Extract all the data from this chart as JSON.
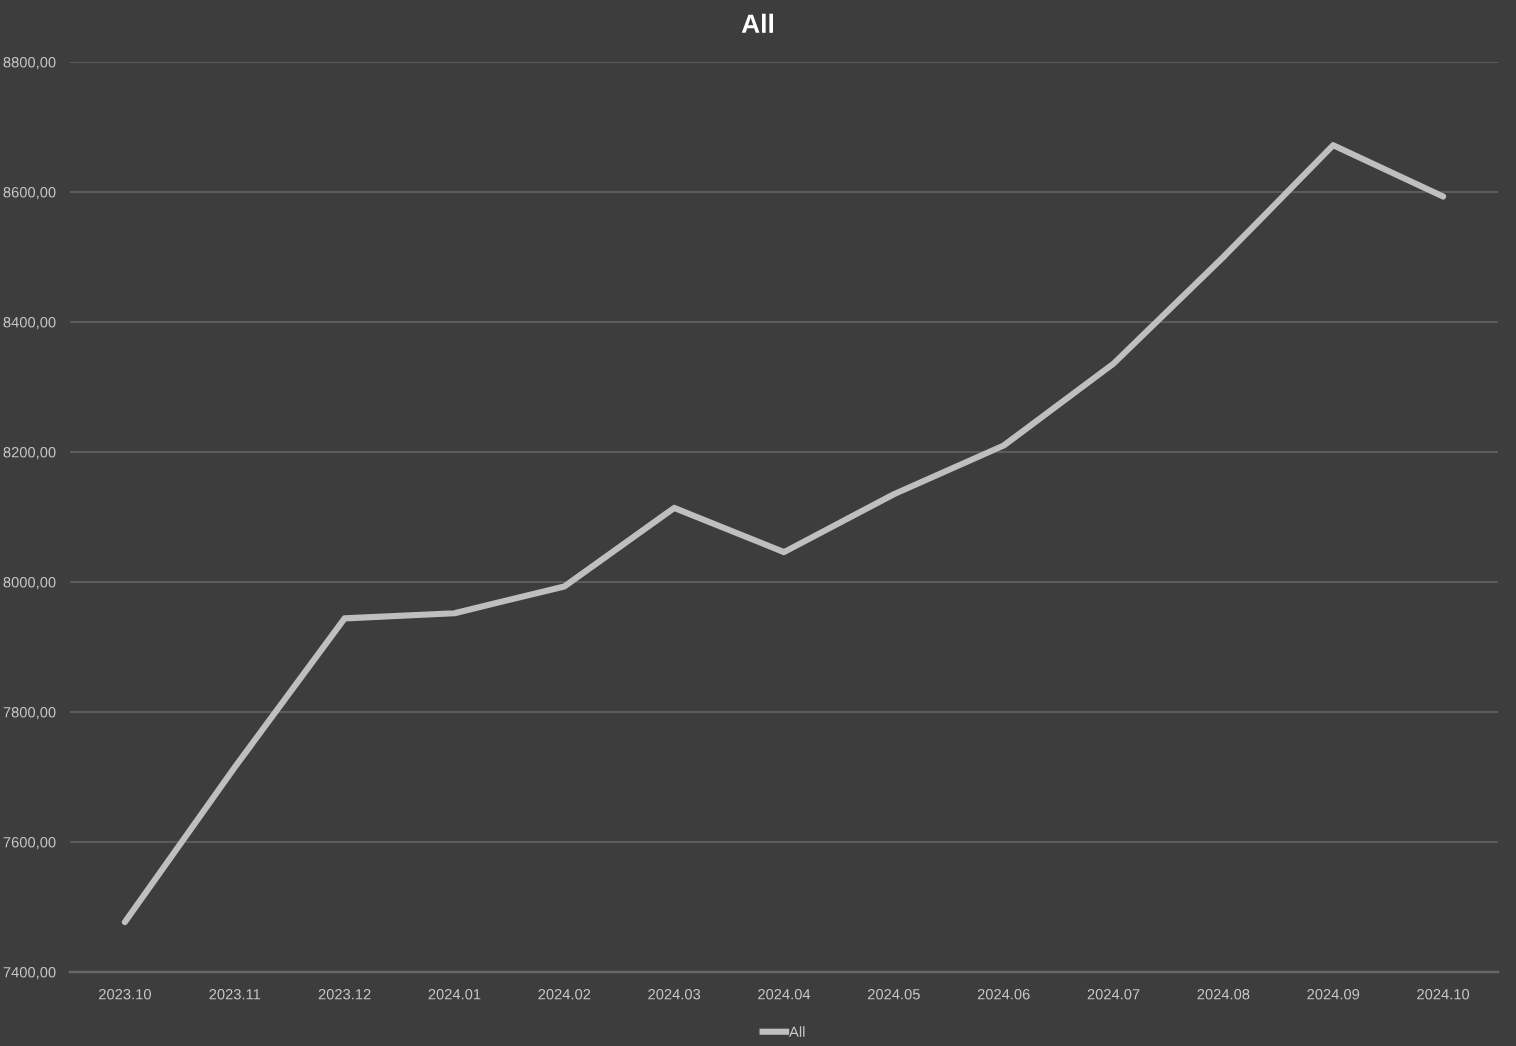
{
  "chart_data": {
    "type": "line",
    "title": "All",
    "categories": [
      "2023.10",
      "2023.11",
      "2023.12",
      "2024.01",
      "2024.02",
      "2024.03",
      "2024.04",
      "2024.05",
      "2024.06",
      "2024.07",
      "2024.08",
      "2024.09",
      "2024.10"
    ],
    "series": [
      {
        "name": "All",
        "color": "#bfbfbf",
        "values": [
          7477,
          7715,
          7944,
          7952,
          7993,
          8114,
          8046,
          8135,
          8210,
          8336,
          8500,
          8672,
          8593
        ]
      }
    ],
    "ylim": [
      7400,
      8800
    ],
    "yticks": [
      {
        "value": 7400,
        "label": "7400,00"
      },
      {
        "value": 7600,
        "label": "7600,00"
      },
      {
        "value": 7800,
        "label": "7800,00"
      },
      {
        "value": 8000,
        "label": "8000,00"
      },
      {
        "value": 8200,
        "label": "8200,00"
      },
      {
        "value": 8400,
        "label": "8400,00"
      },
      {
        "value": 8600,
        "label": "8600,00"
      },
      {
        "value": 8800,
        "label": "8800,00"
      }
    ],
    "grid": "y",
    "legend": "bottom",
    "line_style": "solid"
  }
}
